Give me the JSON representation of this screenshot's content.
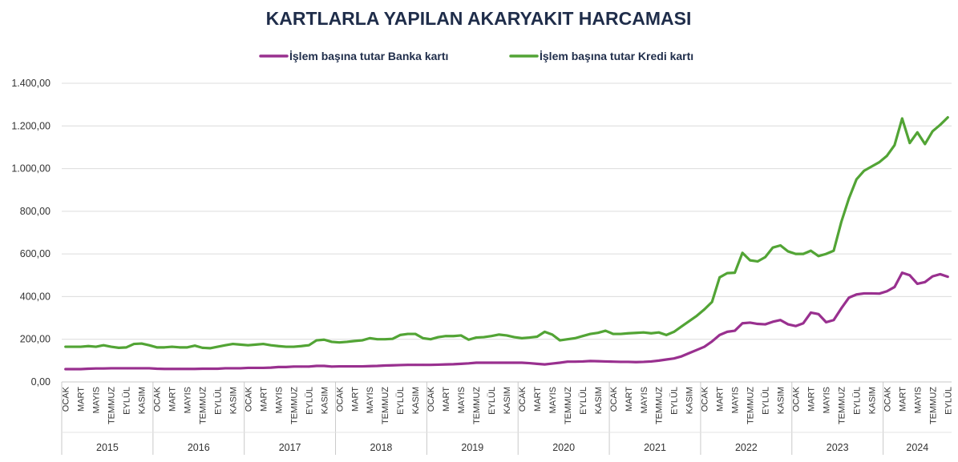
{
  "chart_data": {
    "type": "line",
    "title": "KARTLARLA YAPILAN AKARYAKIT HARCAMASI",
    "xlabel": "",
    "ylabel": "",
    "ylim": [
      0,
      1400
    ],
    "yticks": [
      "0,00",
      "200,00",
      "400,00",
      "600,00",
      "800,00",
      "1.000,00",
      "1.200,00",
      "1.400,00"
    ],
    "grid": true,
    "legend_position": "top",
    "years": [
      "2015",
      "2016",
      "2017",
      "2018",
      "2019",
      "2020",
      "2021",
      "2022",
      "2023",
      "2024"
    ],
    "month_labels": [
      "OCAK",
      "MART",
      "MAYIS",
      "TEMMUZ",
      "EYLÜL",
      "KASIM"
    ],
    "last_year_month_labels": [
      "OCAK",
      "MART",
      "MAYIS",
      "TEMMUZ",
      "EYLÜL"
    ],
    "series": [
      {
        "name": "İşlem başına tutar Banka kartı",
        "color": "#99308f",
        "values": [
          60,
          60,
          60,
          62,
          63,
          63,
          64,
          64,
          64,
          64,
          64,
          64,
          62,
          61,
          61,
          61,
          61,
          61,
          62,
          62,
          62,
          64,
          64,
          64,
          66,
          66,
          66,
          67,
          70,
          70,
          72,
          72,
          72,
          75,
          75,
          72,
          73,
          73,
          73,
          73,
          74,
          75,
          77,
          78,
          79,
          80,
          80,
          80,
          80,
          81,
          82,
          83,
          85,
          87,
          90,
          90,
          90,
          90,
          90,
          90,
          90,
          88,
          85,
          82,
          86,
          90,
          95,
          95,
          96,
          98,
          97,
          96,
          95,
          94,
          94,
          93,
          94,
          96,
          100,
          105,
          110,
          120,
          135,
          150,
          165,
          190,
          220,
          235,
          240,
          275,
          278,
          272,
          270,
          282,
          290,
          270,
          262,
          275,
          325,
          318,
          280,
          290,
          345,
          395,
          410,
          415,
          415,
          414,
          425,
          445,
          512,
          500,
          460,
          468,
          495,
          505,
          493
        ]
      },
      {
        "name": "İşlem başına tutar Kredi kartı",
        "color": "#52a435",
        "values": [
          165,
          165,
          165,
          168,
          165,
          172,
          165,
          160,
          162,
          178,
          180,
          172,
          162,
          162,
          165,
          162,
          162,
          170,
          160,
          158,
          165,
          172,
          178,
          175,
          172,
          175,
          178,
          172,
          168,
          165,
          165,
          168,
          172,
          195,
          198,
          188,
          185,
          188,
          192,
          195,
          205,
          200,
          200,
          202,
          220,
          225,
          225,
          205,
          200,
          210,
          215,
          215,
          218,
          198,
          208,
          210,
          215,
          222,
          218,
          210,
          205,
          208,
          212,
          235,
          222,
          195,
          200,
          205,
          215,
          225,
          230,
          240,
          225,
          225,
          228,
          230,
          232,
          228,
          232,
          220,
          235,
          260,
          285,
          310,
          340,
          375,
          490,
          510,
          512,
          605,
          570,
          565,
          585,
          630,
          640,
          612,
          600,
          600,
          615,
          590,
          600,
          615,
          750,
          860,
          950,
          990,
          1010,
          1030,
          1060,
          1110,
          1235,
          1120,
          1170,
          1115,
          1175,
          1205,
          1240
        ]
      }
    ]
  }
}
